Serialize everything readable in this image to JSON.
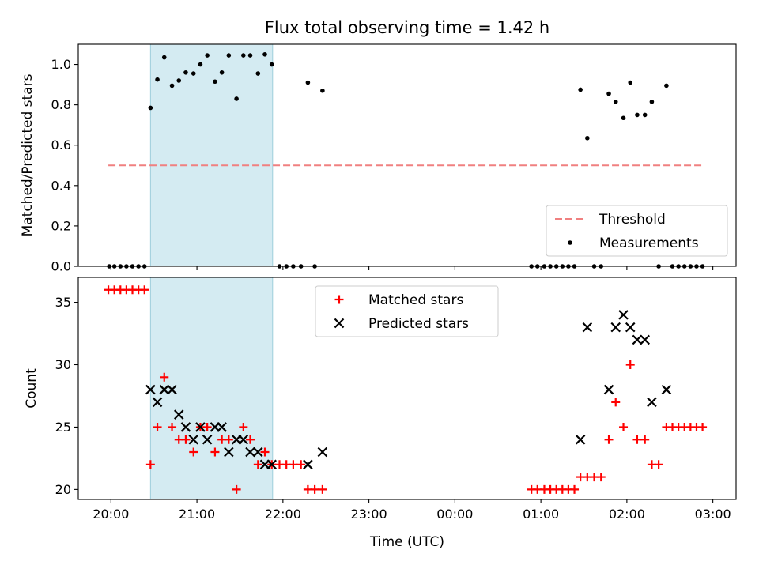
{
  "chart_data": {
    "title": "Flux total observing time = 1.42 h",
    "xlabel": "Time (UTC)",
    "x_ticks": [
      "20:00",
      "21:00",
      "22:00",
      "23:00",
      "00:00",
      "01:00",
      "02:00",
      "03:00"
    ],
    "x_tick_hours": [
      0,
      1,
      2,
      3,
      4,
      5,
      6,
      7
    ],
    "x_range_hours_after_2000": [
      -0.38,
      7.27
    ],
    "shaded_interval_hours_after_2000": [
      0.46,
      1.88
    ],
    "shade_color": "#add8e6",
    "panels": [
      {
        "type": "scatter",
        "ylabel": "Matched/Predicted stars",
        "ylim": [
          0,
          1.1
        ],
        "y_ticks": [
          "0.0",
          "0.2",
          "0.4",
          "0.6",
          "0.8",
          "1.0"
        ],
        "y_tick_values": [
          0,
          0.2,
          0.4,
          0.6,
          0.8,
          1.0
        ],
        "legend_position": "lower-right",
        "threshold": {
          "name": "Threshold",
          "y": 0.5,
          "x_range": [
            -0.03,
            6.9
          ],
          "color": "#f08080"
        },
        "series": [
          {
            "name": "Measurements",
            "color": "#000000",
            "marker": "dot",
            "points": [
              [
                -0.02,
                0
              ],
              [
                0.04,
                0
              ],
              [
                0.11,
                0
              ],
              [
                0.18,
                0
              ],
              [
                0.25,
                0
              ],
              [
                0.32,
                0
              ],
              [
                0.39,
                0
              ],
              [
                0.46,
                0.785
              ],
              [
                0.54,
                0.925
              ],
              [
                0.62,
                1.035
              ],
              [
                0.71,
                0.895
              ],
              [
                0.79,
                0.92
              ],
              [
                0.87,
                0.96
              ],
              [
                0.96,
                0.955
              ],
              [
                1.04,
                1.0
              ],
              [
                1.12,
                1.045
              ],
              [
                1.21,
                0.915
              ],
              [
                1.29,
                0.96
              ],
              [
                1.37,
                1.045
              ],
              [
                1.46,
                0.83
              ],
              [
                1.54,
                1.045
              ],
              [
                1.62,
                1.045
              ],
              [
                1.71,
                0.955
              ],
              [
                1.79,
                1.05
              ],
              [
                1.87,
                1.0
              ],
              [
                1.96,
                0
              ],
              [
                2.04,
                0
              ],
              [
                2.12,
                0
              ],
              [
                2.21,
                0
              ],
              [
                2.29,
                0.91
              ],
              [
                2.37,
                0
              ],
              [
                2.46,
                0.87
              ],
              [
                4.89,
                0
              ],
              [
                4.96,
                0
              ],
              [
                5.04,
                0
              ],
              [
                5.11,
                0
              ],
              [
                5.18,
                0
              ],
              [
                5.25,
                0
              ],
              [
                5.32,
                0
              ],
              [
                5.39,
                0
              ],
              [
                5.46,
                0.875
              ],
              [
                5.54,
                0.635
              ],
              [
                5.62,
                0
              ],
              [
                5.7,
                0
              ],
              [
                5.79,
                0.855
              ],
              [
                5.87,
                0.815
              ],
              [
                5.96,
                0.735
              ],
              [
                6.04,
                0.91
              ],
              [
                6.12,
                0.75
              ],
              [
                6.21,
                0.75
              ],
              [
                6.29,
                0.815
              ],
              [
                6.37,
                0
              ],
              [
                6.46,
                0.895
              ],
              [
                6.53,
                0
              ],
              [
                6.6,
                0
              ],
              [
                6.67,
                0
              ],
              [
                6.74,
                0
              ],
              [
                6.81,
                0
              ],
              [
                6.88,
                0
              ]
            ]
          }
        ]
      },
      {
        "type": "scatter",
        "ylabel": "Count",
        "ylim": [
          19.2,
          37
        ],
        "y_ticks": [
          "20",
          "25",
          "30",
          "35"
        ],
        "y_tick_values": [
          20,
          25,
          30,
          35
        ],
        "legend_position": "upper-center",
        "series": [
          {
            "name": "Matched stars",
            "color": "#ff0000",
            "marker": "plus",
            "points": [
              [
                -0.03,
                36
              ],
              [
                0.04,
                36
              ],
              [
                0.11,
                36
              ],
              [
                0.18,
                36
              ],
              [
                0.25,
                36
              ],
              [
                0.32,
                36
              ],
              [
                0.39,
                36
              ],
              [
                0.46,
                22
              ],
              [
                0.54,
                25
              ],
              [
                0.62,
                29
              ],
              [
                0.71,
                25
              ],
              [
                0.79,
                24
              ],
              [
                0.87,
                24
              ],
              [
                0.96,
                23
              ],
              [
                1.04,
                25
              ],
              [
                1.12,
                25
              ],
              [
                1.21,
                23
              ],
              [
                1.29,
                24
              ],
              [
                1.37,
                24
              ],
              [
                1.46,
                20
              ],
              [
                1.54,
                25
              ],
              [
                1.62,
                24
              ],
              [
                1.71,
                22
              ],
              [
                1.79,
                23
              ],
              [
                1.87,
                22
              ],
              [
                1.96,
                22
              ],
              [
                2.04,
                22
              ],
              [
                2.12,
                22
              ],
              [
                2.21,
                22
              ],
              [
                2.29,
                20
              ],
              [
                2.37,
                20
              ],
              [
                2.46,
                20
              ],
              [
                4.89,
                20
              ],
              [
                4.96,
                20
              ],
              [
                5.04,
                20
              ],
              [
                5.11,
                20
              ],
              [
                5.18,
                20
              ],
              [
                5.25,
                20
              ],
              [
                5.32,
                20
              ],
              [
                5.39,
                20
              ],
              [
                5.46,
                21
              ],
              [
                5.54,
                21
              ],
              [
                5.62,
                21
              ],
              [
                5.7,
                21
              ],
              [
                5.79,
                24
              ],
              [
                5.87,
                27
              ],
              [
                5.96,
                25
              ],
              [
                6.04,
                30
              ],
              [
                6.12,
                24
              ],
              [
                6.21,
                24
              ],
              [
                6.29,
                22
              ],
              [
                6.37,
                22
              ],
              [
                6.46,
                25
              ],
              [
                6.53,
                25
              ],
              [
                6.6,
                25
              ],
              [
                6.67,
                25
              ],
              [
                6.74,
                25
              ],
              [
                6.81,
                25
              ],
              [
                6.88,
                25
              ]
            ]
          },
          {
            "name": "Predicted stars",
            "color": "#000000",
            "marker": "x",
            "points": [
              [
                0.46,
                28
              ],
              [
                0.54,
                27
              ],
              [
                0.62,
                28
              ],
              [
                0.71,
                28
              ],
              [
                0.79,
                26
              ],
              [
                0.87,
                25
              ],
              [
                0.96,
                24
              ],
              [
                1.04,
                25
              ],
              [
                1.12,
                24
              ],
              [
                1.21,
                25
              ],
              [
                1.29,
                25
              ],
              [
                1.37,
                23
              ],
              [
                1.46,
                24
              ],
              [
                1.54,
                24
              ],
              [
                1.62,
                23
              ],
              [
                1.71,
                23
              ],
              [
                1.79,
                22
              ],
              [
                1.87,
                22
              ],
              [
                2.29,
                22
              ],
              [
                2.46,
                23
              ],
              [
                5.46,
                24
              ],
              [
                5.54,
                33
              ],
              [
                5.79,
                28
              ],
              [
                5.87,
                33
              ],
              [
                5.96,
                34
              ],
              [
                6.04,
                33
              ],
              [
                6.12,
                32
              ],
              [
                6.21,
                32
              ],
              [
                6.29,
                27
              ],
              [
                6.46,
                28
              ]
            ]
          }
        ]
      }
    ]
  }
}
